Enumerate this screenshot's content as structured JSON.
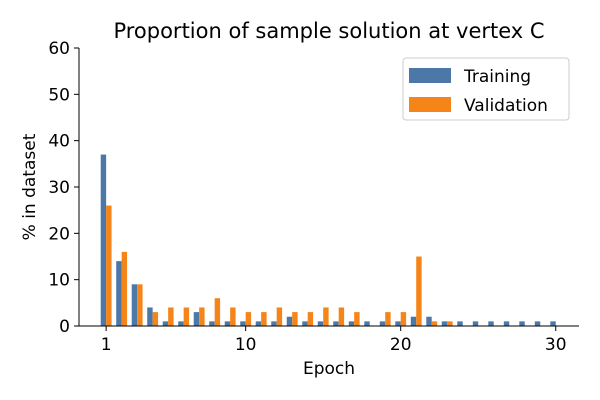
{
  "chart_data": {
    "type": "bar",
    "title": "Proportion of sample solution at vertex C",
    "xlabel": "Epoch",
    "ylabel": "% in dataset",
    "x": [
      1,
      2,
      3,
      4,
      5,
      6,
      7,
      8,
      9,
      10,
      11,
      12,
      13,
      14,
      15,
      16,
      17,
      18,
      19,
      20,
      21,
      22,
      23,
      24,
      25,
      26,
      27,
      28,
      29,
      30
    ],
    "xlim": [
      -0.75,
      31.5
    ],
    "ylim": [
      0,
      60
    ],
    "xticks": [
      1,
      10,
      20,
      30
    ],
    "yticks": [
      0,
      10,
      20,
      30,
      40,
      50,
      60
    ],
    "grid": false,
    "legend_position": "top-right",
    "series": [
      {
        "name": "Training",
        "color": "#4c78a8",
        "values": [
          37,
          14,
          9,
          4,
          1,
          1,
          3,
          1,
          1,
          1,
          1,
          1,
          2,
          1,
          1,
          1,
          1,
          1,
          1,
          1,
          2,
          2,
          1,
          1,
          1,
          1,
          1,
          1,
          1,
          1
        ]
      },
      {
        "name": "Validation",
        "color": "#f58518",
        "values": [
          26,
          16,
          9,
          3,
          4,
          4,
          4,
          6,
          4,
          3,
          3,
          4,
          3,
          3,
          4,
          4,
          3,
          0,
          3,
          3,
          15,
          1,
          1,
          0,
          0,
          0,
          0,
          0,
          0,
          0
        ]
      }
    ]
  }
}
